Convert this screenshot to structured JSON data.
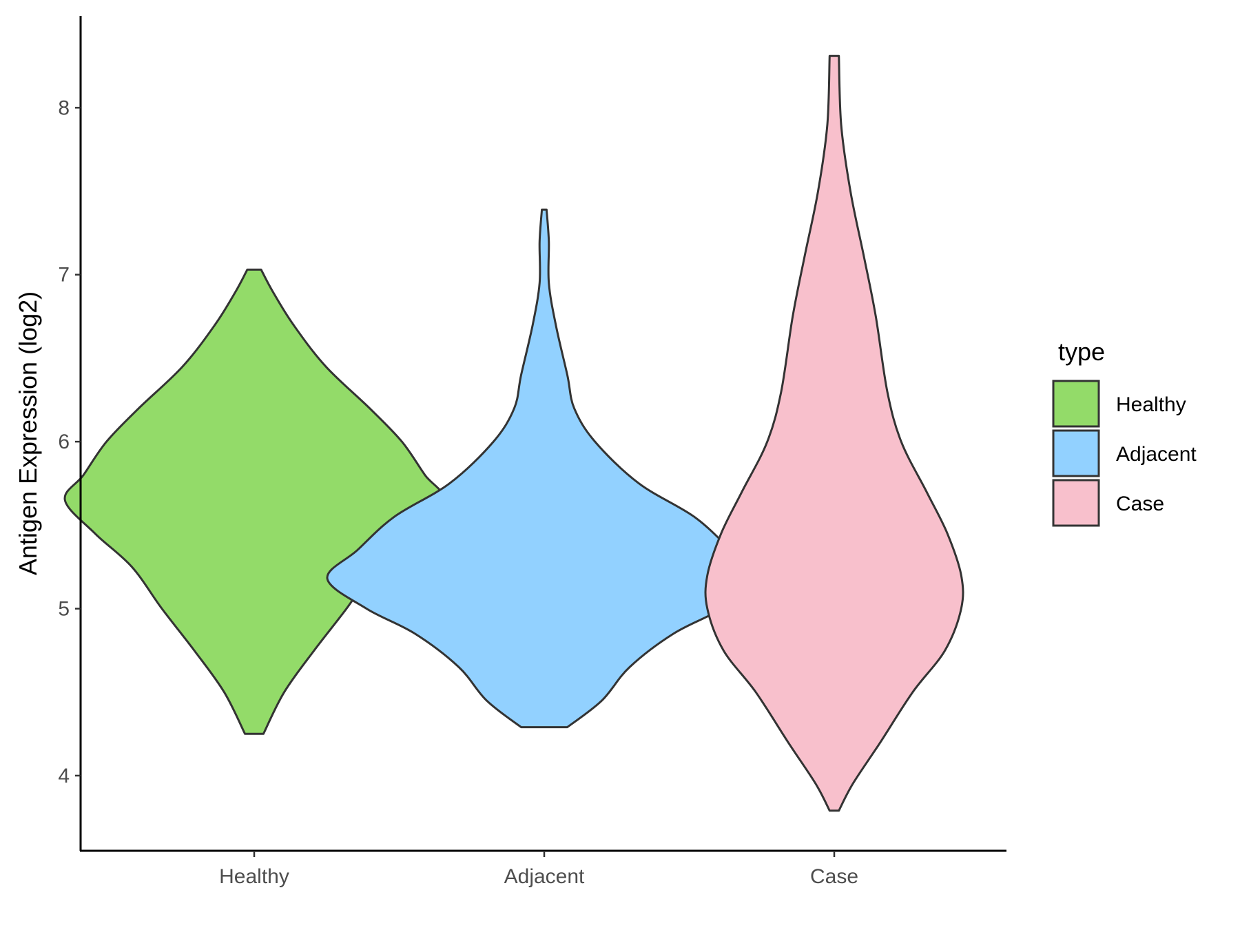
{
  "chart_data": {
    "type": "violin",
    "title": "",
    "xlabel": "",
    "ylabel": "Antigen Expression (log2)",
    "categories": [
      "Healthy",
      "Adjacent",
      "Case"
    ],
    "ylim": [
      3.55,
      8.55
    ],
    "yticks": [
      4,
      5,
      6,
      7,
      8
    ],
    "grid": false,
    "legend": {
      "title": "type",
      "placement": "right"
    },
    "series": [
      {
        "name": "Healthy",
        "color": "#93DB69",
        "range": [
          4.25,
          7.03
        ],
        "density": [
          [
            4.25,
            0.04
          ],
          [
            4.5,
            0.13
          ],
          [
            4.75,
            0.26
          ],
          [
            5.0,
            0.4
          ],
          [
            5.25,
            0.53
          ],
          [
            5.45,
            0.69
          ],
          [
            5.65,
            0.82
          ],
          [
            5.8,
            0.74
          ],
          [
            6.0,
            0.64
          ],
          [
            6.2,
            0.5
          ],
          [
            6.45,
            0.31
          ],
          [
            6.7,
            0.17
          ],
          [
            6.9,
            0.08
          ],
          [
            7.03,
            0.03
          ]
        ]
      },
      {
        "name": "Adjacent",
        "color": "#92D1FF",
        "range": [
          4.29,
          7.39
        ],
        "density": [
          [
            4.29,
            0.1
          ],
          [
            4.45,
            0.25
          ],
          [
            4.65,
            0.37
          ],
          [
            4.85,
            0.56
          ],
          [
            5.0,
            0.77
          ],
          [
            5.18,
            0.94
          ],
          [
            5.35,
            0.81
          ],
          [
            5.55,
            0.65
          ],
          [
            5.75,
            0.41
          ],
          [
            6.0,
            0.22
          ],
          [
            6.2,
            0.13
          ],
          [
            6.4,
            0.1
          ],
          [
            6.7,
            0.05
          ],
          [
            6.95,
            0.02
          ],
          [
            7.2,
            0.02
          ],
          [
            7.39,
            0.01
          ]
        ]
      },
      {
        "name": "Case",
        "color": "#F8C0CC",
        "range": [
          3.79,
          8.31
        ],
        "density": [
          [
            3.79,
            0.02
          ],
          [
            3.95,
            0.08
          ],
          [
            4.2,
            0.2
          ],
          [
            4.5,
            0.34
          ],
          [
            4.75,
            0.48
          ],
          [
            5.0,
            0.55
          ],
          [
            5.2,
            0.55
          ],
          [
            5.45,
            0.49
          ],
          [
            5.7,
            0.4
          ],
          [
            6.0,
            0.29
          ],
          [
            6.3,
            0.23
          ],
          [
            6.75,
            0.18
          ],
          [
            7.1,
            0.13
          ],
          [
            7.5,
            0.07
          ],
          [
            7.9,
            0.03
          ],
          [
            8.31,
            0.02
          ]
        ]
      }
    ]
  }
}
